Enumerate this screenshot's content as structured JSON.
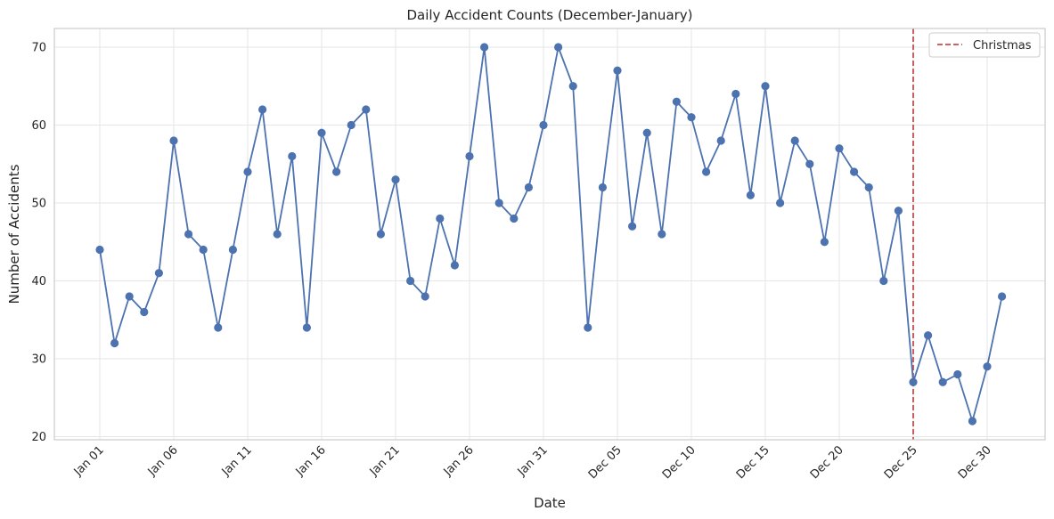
{
  "chart_data": {
    "type": "line",
    "title": "Daily Accident Counts (December-January)",
    "xlabel": "Date",
    "ylabel": "Number of Accidents",
    "ylim": [
      19.6,
      72.4
    ],
    "yticks": [
      20,
      30,
      40,
      50,
      60,
      70
    ],
    "grid": true,
    "legend_position": "top-right",
    "line_color": "#4c72b0",
    "annotation_color": "#c44e52",
    "xtick_labels": [
      "Jan 01",
      "Jan 06",
      "Jan 11",
      "Jan 16",
      "Jan 21",
      "Jan 26",
      "Jan 31",
      "Dec 05",
      "Dec 10",
      "Dec 15",
      "Dec 20",
      "Dec 25",
      "Dec 30"
    ],
    "series": [
      {
        "x": [
          "Jan 01",
          "Jan 02",
          "Jan 03",
          "Jan 04",
          "Jan 05",
          "Jan 06",
          "Jan 07",
          "Jan 08",
          "Jan 09",
          "Jan 10",
          "Jan 11",
          "Jan 12",
          "Jan 13",
          "Jan 14",
          "Jan 15",
          "Jan 16",
          "Jan 17",
          "Jan 18",
          "Jan 19",
          "Jan 20",
          "Jan 21",
          "Jan 22",
          "Jan 23",
          "Jan 24",
          "Jan 25",
          "Jan 26",
          "Jan 27",
          "Jan 28",
          "Jan 29",
          "Jan 30",
          "Jan 31",
          "Dec 01",
          "Dec 02",
          "Dec 03",
          "Dec 04",
          "Dec 05",
          "Dec 06",
          "Dec 07",
          "Dec 08",
          "Dec 09",
          "Dec 10",
          "Dec 11",
          "Dec 12",
          "Dec 13",
          "Dec 14",
          "Dec 15",
          "Dec 16",
          "Dec 17",
          "Dec 18",
          "Dec 19",
          "Dec 20",
          "Dec 21",
          "Dec 22",
          "Dec 23",
          "Dec 24",
          "Dec 25",
          "Dec 26",
          "Dec 27",
          "Dec 28",
          "Dec 29",
          "Dec 30",
          "Dec 31"
        ],
        "values": [
          44,
          32,
          38,
          36,
          41,
          58,
          46,
          44,
          34,
          44,
          54,
          62,
          46,
          56,
          34,
          59,
          54,
          60,
          62,
          46,
          53,
          40,
          38,
          48,
          42,
          56,
          70,
          50,
          48,
          52,
          60,
          70,
          65,
          34,
          52,
          67,
          47,
          59,
          46,
          63,
          61,
          54,
          58,
          64,
          51,
          65,
          50,
          58,
          55,
          45,
          57,
          54,
          52,
          40,
          49,
          27,
          33,
          27,
          28,
          22,
          29,
          38
        ]
      }
    ],
    "annotations": [
      {
        "label": "Christmas",
        "x": "Dec 25",
        "style": "dashed-vertical-line"
      }
    ]
  }
}
